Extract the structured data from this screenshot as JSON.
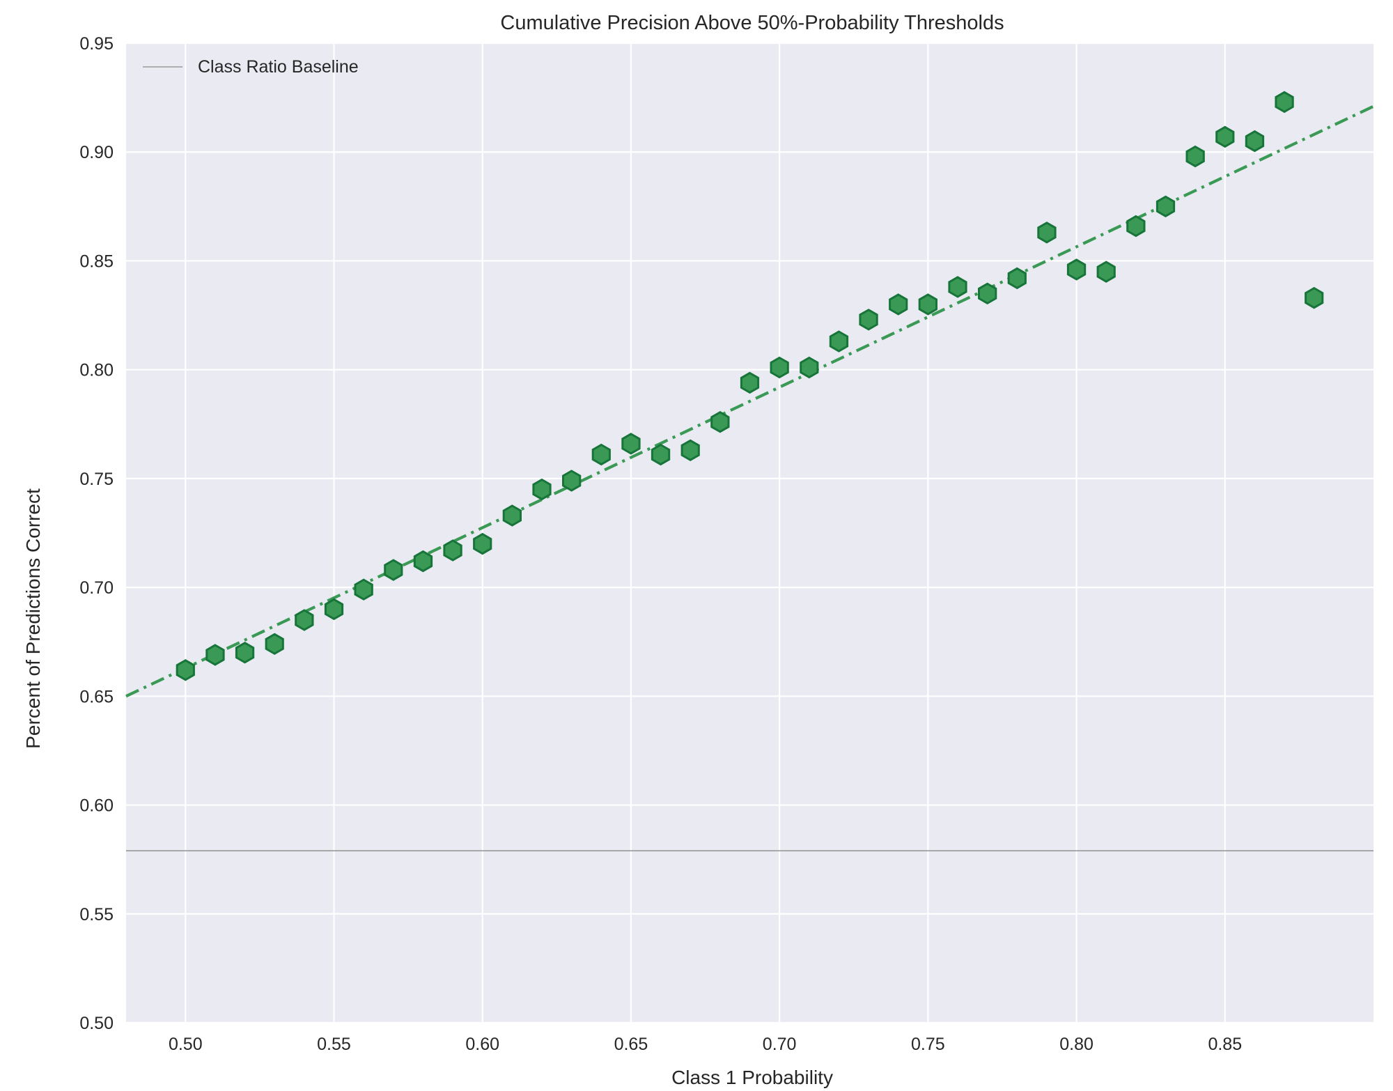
{
  "chart_data": {
    "type": "scatter",
    "title": "Cumulative Precision Above 50%-Probability Thresholds",
    "xlabel": "Class 1 Probability",
    "ylabel": "Percent of Predictions Correct",
    "xlim": [
      0.48,
      0.9
    ],
    "ylim": [
      0.5,
      0.95
    ],
    "x_ticks": [
      "0.50",
      "0.55",
      "0.60",
      "0.65",
      "0.70",
      "0.75",
      "0.80",
      "0.85"
    ],
    "y_ticks": [
      "0.50",
      "0.55",
      "0.60",
      "0.65",
      "0.70",
      "0.75",
      "0.80",
      "0.85",
      "0.90",
      "0.95"
    ],
    "grid": true,
    "legend": {
      "position": "top-left",
      "entries": [
        "Class Ratio Baseline"
      ]
    },
    "baseline": {
      "name": "Class Ratio Baseline",
      "y": 0.579,
      "color": "#999999"
    },
    "trendline": {
      "x": [
        0.48,
        0.9
      ],
      "y": [
        0.65,
        0.921
      ],
      "color": "#3a9a55",
      "style": "dash-dot"
    },
    "points": {
      "marker": "hexagon",
      "fill": "#3a9a55",
      "edge": "#17753a",
      "x": [
        0.5,
        0.51,
        0.52,
        0.53,
        0.54,
        0.55,
        0.56,
        0.57,
        0.58,
        0.59,
        0.6,
        0.61,
        0.62,
        0.63,
        0.64,
        0.65,
        0.66,
        0.67,
        0.68,
        0.69,
        0.7,
        0.71,
        0.72,
        0.73,
        0.74,
        0.75,
        0.76,
        0.77,
        0.78,
        0.79,
        0.8,
        0.81,
        0.82,
        0.83,
        0.84,
        0.85,
        0.86,
        0.87,
        0.88
      ],
      "y": [
        0.662,
        0.669,
        0.67,
        0.674,
        0.685,
        0.69,
        0.699,
        0.708,
        0.712,
        0.717,
        0.72,
        0.733,
        0.745,
        0.749,
        0.761,
        0.766,
        0.761,
        0.763,
        0.776,
        0.794,
        0.801,
        0.801,
        0.813,
        0.823,
        0.83,
        0.83,
        0.838,
        0.835,
        0.842,
        0.863,
        0.846,
        0.845,
        0.866,
        0.875,
        0.898,
        0.907,
        0.905,
        0.923,
        0.833
      ]
    }
  }
}
